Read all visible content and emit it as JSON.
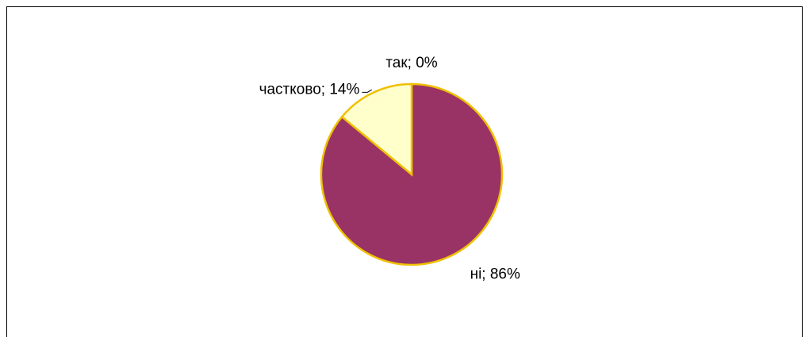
{
  "chart_data": {
    "type": "pie",
    "values": [
      0,
      86,
      14
    ],
    "value_labels": [
      "так; 0%",
      "ні; 86%",
      "частково; 14%"
    ],
    "colors": [
      "#ffffff",
      "#993366",
      "#ffffcc"
    ],
    "edge_color": "#f0c000"
  }
}
